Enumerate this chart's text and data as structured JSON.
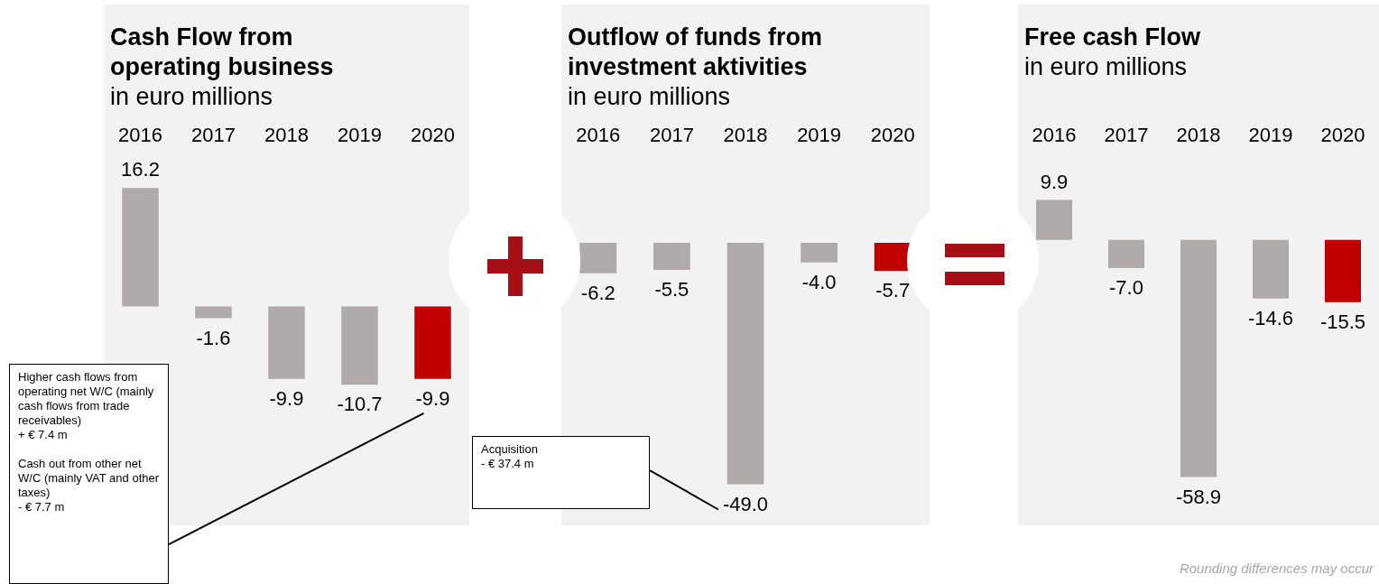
{
  "chart_data": [
    {
      "type": "bar",
      "title": "Cash Flow from operating business",
      "subtitle": "in euro millions",
      "categories": [
        "2016",
        "2017",
        "2018",
        "2019",
        "2020"
      ],
      "values": [
        16.2,
        -1.6,
        -9.9,
        -10.7,
        -9.9
      ],
      "colors": [
        "#b0abaa",
        "#b0abaa",
        "#b0abaa",
        "#b0abaa",
        "#c00000"
      ],
      "value_labels": [
        "16.2",
        "-1.6",
        "-9.9",
        "-10.7",
        "-9.9"
      ],
      "annotations": [
        "Higher cash flows from operating net W/C (mainly cash flows from trade receivables)\n+ € 7.4 m\n\nCash out from other net W/C (mainly VAT and other taxes)\n- € 7.7 m"
      ]
    },
    {
      "type": "bar",
      "title": "Outflow of funds from investment aktivities",
      "subtitle": "in euro millions",
      "categories": [
        "2016",
        "2017",
        "2018",
        "2019",
        "2020"
      ],
      "values": [
        -6.2,
        -5.5,
        -49.0,
        -4.0,
        -5.7
      ],
      "colors": [
        "#b0abaa",
        "#b0abaa",
        "#b0abaa",
        "#b0abaa",
        "#c00000"
      ],
      "value_labels": [
        "-6.2",
        "-5.5",
        "-49.0",
        "-4.0",
        "-5.7"
      ],
      "annotations": [
        "Acquisition\n- € 37.4 m"
      ]
    },
    {
      "type": "bar",
      "title": "Free cash Flow",
      "subtitle": "in euro millions",
      "categories": [
        "2016",
        "2017",
        "2018",
        "2019",
        "2020"
      ],
      "values": [
        9.9,
        -7.0,
        -58.9,
        -14.6,
        -15.5
      ],
      "colors": [
        "#b0abaa",
        "#b0abaa",
        "#b0abaa",
        "#b0abaa",
        "#c00000"
      ],
      "value_labels": [
        "9.9",
        "-7.0",
        "-58.9",
        "-14.6",
        "-15.5"
      ],
      "annotations": [
        "Rounding differences may occur"
      ]
    }
  ]
}
